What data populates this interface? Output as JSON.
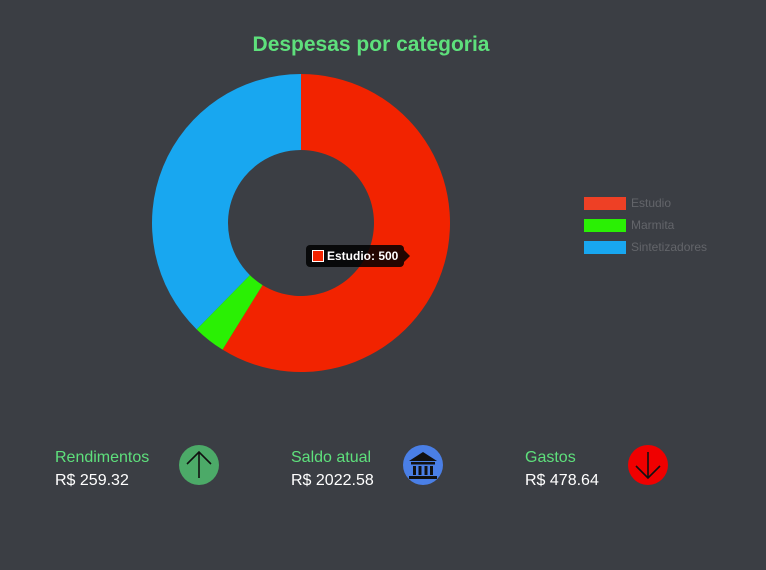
{
  "chart_data": {
    "type": "pie",
    "title": "Despesas por categoria",
    "categories": [
      "Estudio",
      "Marmita",
      "Sintetizadores"
    ],
    "values": [
      500,
      30,
      320
    ],
    "colors": [
      "#f22300",
      "#2af004",
      "#18a7f0"
    ],
    "legend_colors": [
      "#ee4025",
      "#2af004",
      "#18a7f0"
    ],
    "legend_position": "right",
    "donut": true
  },
  "tooltip": {
    "text": "Estudio: 500",
    "color": "#f22300"
  },
  "summary": {
    "income": {
      "label": "Rendimentos",
      "value": "R$ 259.32",
      "icon": "arrow-up-circle-icon",
      "color": "#4caa68"
    },
    "balance": {
      "label": "Saldo atual",
      "value": "R$ 2022.58",
      "icon": "bank-icon",
      "color": "#4a7fe6"
    },
    "expenses": {
      "label": "Gastos",
      "value": "R$ 478.64",
      "icon": "arrow-down-circle-icon",
      "color": "#f00000"
    }
  }
}
